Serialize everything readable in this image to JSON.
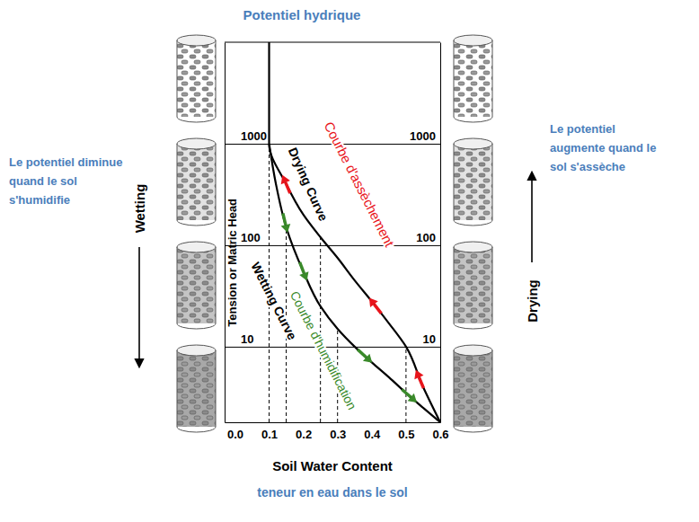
{
  "chart_data": {
    "type": "line",
    "title": "Potentiel hydrique",
    "xlabel": "Soil Water Content",
    "xlabel_translation": "teneur en eau dans le sol",
    "ylabel": "Tension or Matric Head",
    "xlim": [
      -0.03,
      0.6
    ],
    "xticks": [
      {
        "value": 0,
        "label": "0.0"
      },
      {
        "value": 0.1,
        "label": "0.1"
      },
      {
        "value": 0.2,
        "label": "0.2"
      },
      {
        "value": 0.3,
        "label": "0.3"
      },
      {
        "value": 0.4,
        "label": "0.4"
      },
      {
        "value": 0.5,
        "label": "0.5"
      },
      {
        "value": 0.6,
        "label": "0.6"
      }
    ],
    "ylim": [
      1.8,
      10000
    ],
    "yticks": [
      10,
      100,
      1000
    ],
    "y2lim": [
      1.8,
      10000
    ],
    "y2ticks": [
      10,
      100,
      1000
    ],
    "log": "y",
    "grid": true,
    "series": [
      {
        "name": "Drying Curve",
        "color": "#000000",
        "x": [
          0.1,
          0.1,
          0.15,
          0.2,
          0.25,
          0.3,
          0.35,
          0.4,
          0.45,
          0.5,
          0.55,
          0.6
        ],
        "values": [
          10000,
          1000,
          400,
          200,
          120,
          75,
          45,
          28,
          17,
          10,
          4,
          1.8
        ],
        "arrows_x": [
          0.15,
          0.41,
          0.54
        ]
      },
      {
        "name": "Wetting Curve",
        "color": "#000000",
        "x": [
          0.1,
          0.12,
          0.15,
          0.2,
          0.25,
          0.3,
          0.35,
          0.4,
          0.45,
          0.5,
          0.55,
          0.6
        ],
        "values": [
          1000,
          400,
          150,
          55,
          25,
          15,
          10,
          7,
          5,
          3.5,
          2.5,
          1.8
        ],
        "arrows_x": [
          0.147,
          0.2,
          0.38,
          0.51
        ]
      }
    ],
    "drop_lines": {
      "x": [
        0.1,
        0.15,
        0.25,
        0.3,
        0.5
      ],
      "values": [
        1000,
        150,
        120,
        15,
        10
      ]
    },
    "annotations": {
      "drying_translation": "Courbe d'assèchement",
      "wetting_translation": "Courbe d'humidification",
      "left_note": [
        "Le potentiel diminue",
        "quand le sol",
        "s'humidifie"
      ],
      "right_note": [
        "Le potentiel",
        "augmente quand le",
        "sol s'assèche"
      ],
      "wetting": "Wetting",
      "drying": "Drying"
    }
  }
}
